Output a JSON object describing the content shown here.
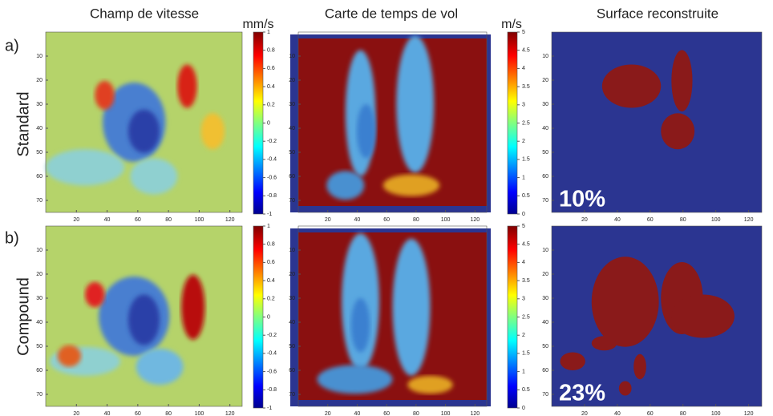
{
  "columns": [
    "Champ de vitesse",
    "Carte de temps de vol",
    "Surface reconstruite"
  ],
  "units": [
    "mm/s",
    "m/s"
  ],
  "rows": [
    {
      "label": "a)",
      "name": "Standard",
      "percent": "10%"
    },
    {
      "label": "b)",
      "name": "Compound",
      "percent": "23%"
    }
  ],
  "xticks": [
    20,
    40,
    60,
    80,
    100,
    120
  ],
  "yticks": [
    10,
    20,
    30,
    40,
    50,
    60,
    70
  ],
  "colorbar_velocity": [
    1,
    0.8,
    0.6,
    0.4,
    0.2,
    0,
    -0.2,
    -0.4,
    -0.6,
    -0.8,
    -1
  ],
  "colorbar_time": [
    5,
    4.5,
    4,
    3.5,
    3,
    2.5,
    2,
    1.5,
    1,
    0.5,
    0
  ]
}
